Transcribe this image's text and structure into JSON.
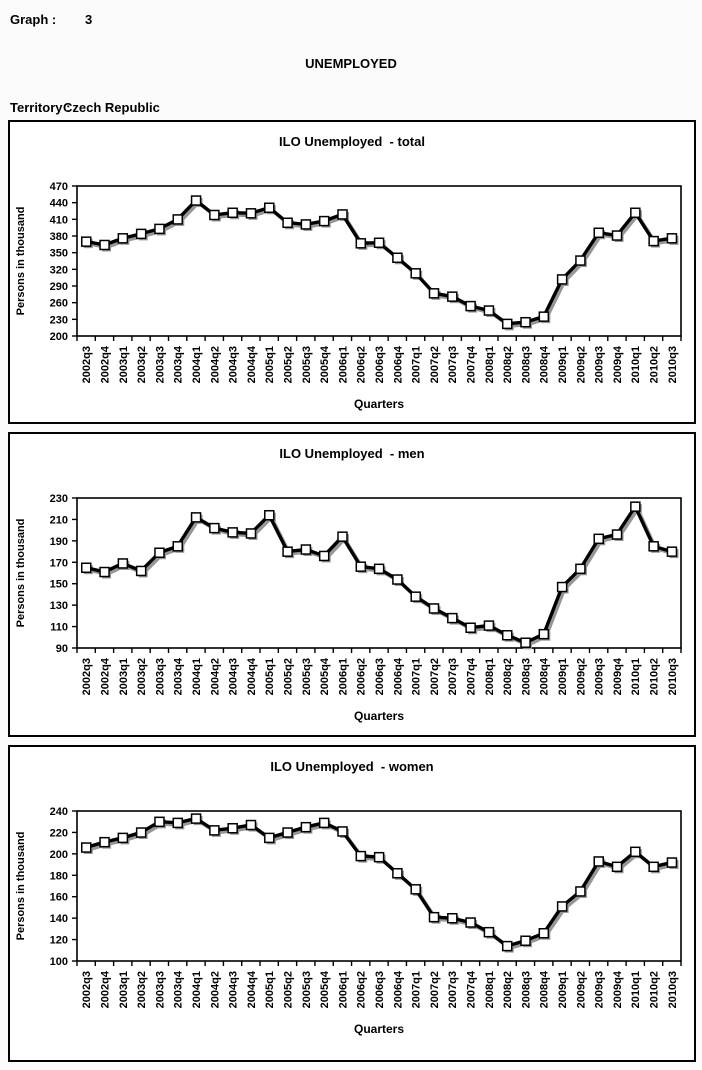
{
  "header": {
    "graph_label": "Graph :",
    "graph_number": "3",
    "page_title": "UNEMPLOYED",
    "territory_label": "Territory :",
    "territory_value": "Czech Republic"
  },
  "chart_data": [
    {
      "type": "line",
      "title": "ILO Unemployed  - total",
      "ylabel": "Persons in thousand",
      "xlabel": "Quarters",
      "ylim": [
        200,
        470
      ],
      "ytick_step": 30,
      "grid": false,
      "legend": "none",
      "categories": [
        "2002q3",
        "2002q4",
        "2003q1",
        "2003q2",
        "2003q3",
        "2003q4",
        "2004q1",
        "2004q2",
        "2004q3",
        "2004q4",
        "2005q1",
        "2005q2",
        "2005q3",
        "2005q4",
        "2006q1",
        "2006q2",
        "2006q3",
        "2006q4",
        "2007q1",
        "2007q2",
        "2007q3",
        "2007q4",
        "2008q1",
        "2008q2",
        "2008q3",
        "2008q4",
        "2009q1",
        "2009q2",
        "2009q3",
        "2009q4",
        "2010q1",
        "2010q2",
        "2010q3"
      ],
      "values": [
        370,
        364,
        376,
        384,
        393,
        410,
        444,
        418,
        422,
        421,
        431,
        404,
        401,
        407,
        419,
        367,
        368,
        341,
        313,
        277,
        271,
        254,
        246,
        222,
        225,
        235,
        302,
        336,
        386,
        381,
        422,
        371,
        376
      ]
    },
    {
      "type": "line",
      "title": "ILO Unemployed  - men",
      "ylabel": "Persons in thousand",
      "xlabel": "Quarters",
      "ylim": [
        90,
        230
      ],
      "ytick_step": 20,
      "grid": false,
      "legend": "none",
      "categories": [
        "2002q3",
        "2002q4",
        "2003q1",
        "2003q2",
        "2003q3",
        "2003q4",
        "2004q1",
        "2004q2",
        "2004q3",
        "2004q4",
        "2005q1",
        "2005q2",
        "2005q3",
        "2005q4",
        "2006q1",
        "2006q2",
        "2006q3",
        "2006q4",
        "2007q1",
        "2007q2",
        "2007q3",
        "2007q4",
        "2008q1",
        "2008q2",
        "2008q3",
        "2008q4",
        "2009q1",
        "2009q2",
        "2009q3",
        "2009q4",
        "2010q1",
        "2010q2",
        "2010q3"
      ],
      "values": [
        165,
        161,
        169,
        162,
        179,
        185,
        212,
        202,
        198,
        197,
        214,
        180,
        182,
        176,
        194,
        166,
        164,
        154,
        138,
        127,
        118,
        109,
        111,
        102,
        95,
        103,
        147,
        164,
        192,
        196,
        222,
        185,
        180
      ]
    },
    {
      "type": "line",
      "title": "ILO Unemployed  - women",
      "ylabel": "Persons in thousand",
      "xlabel": "Quarters",
      "ylim": [
        100,
        240
      ],
      "ytick_step": 20,
      "grid": false,
      "legend": "none",
      "categories": [
        "2002q3",
        "2002q4",
        "2003q1",
        "2003q2",
        "2003q3",
        "2003q4",
        "2004q1",
        "2004q2",
        "2004q3",
        "2004q4",
        "2005q1",
        "2005q2",
        "2005q3",
        "2005q4",
        "2006q1",
        "2006q2",
        "2006q3",
        "2006q4",
        "2007q1",
        "2007q2",
        "2007q3",
        "2007q4",
        "2008q1",
        "2008q2",
        "2008q3",
        "2008q4",
        "2009q1",
        "2009q2",
        "2009q3",
        "2009q4",
        "2010q1",
        "2010q2",
        "2010q3"
      ],
      "values": [
        206,
        211,
        215,
        220,
        230,
        229,
        233,
        222,
        224,
        227,
        215,
        220,
        225,
        229,
        221,
        198,
        197,
        182,
        167,
        141,
        140,
        136,
        127,
        114,
        119,
        126,
        151,
        165,
        193,
        188,
        202,
        188,
        192
      ]
    }
  ],
  "style": {
    "line_color": "#000000",
    "marker_fill": "#ffffff",
    "marker_border": "#000000",
    "shadow_color": "#969696",
    "axis_color": "#000000"
  }
}
